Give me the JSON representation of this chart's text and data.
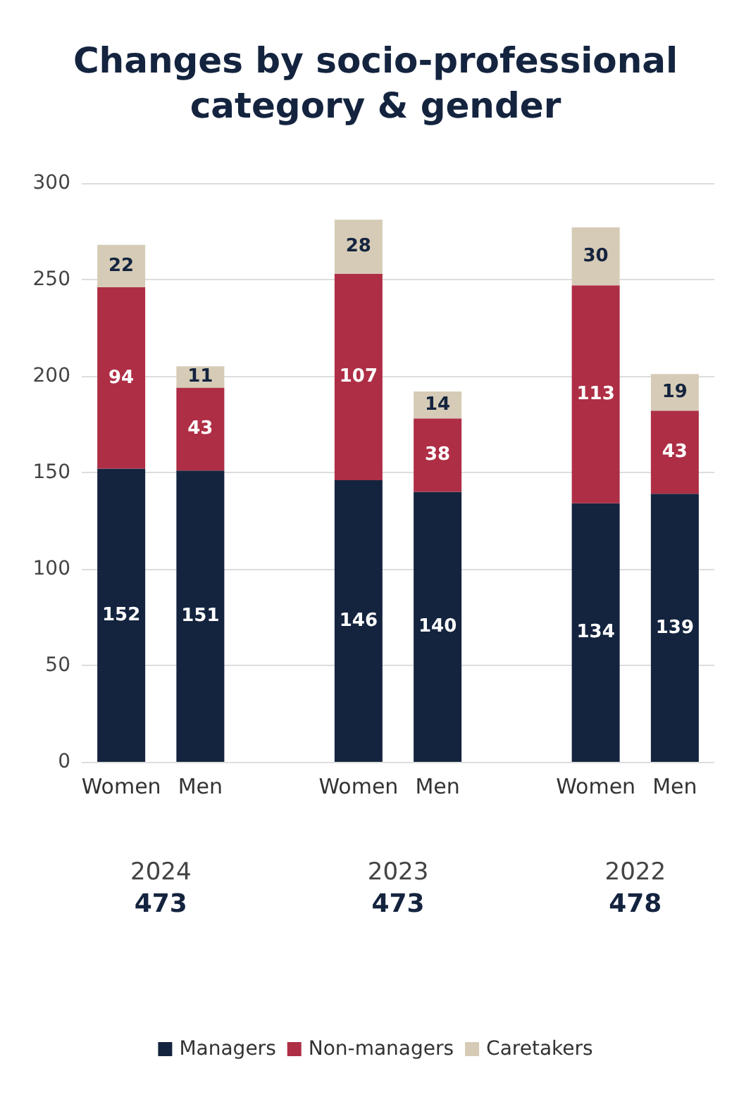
{
  "chart_data": {
    "type": "bar",
    "title": "Changes by socio-professional\ncategory & gender",
    "categories": [
      "Women",
      "Men",
      null,
      "Women",
      "Men",
      null,
      "Women",
      "Men"
    ],
    "series": [
      {
        "name": "Managers",
        "color": "#14243f",
        "values": [
          152,
          151,
          null,
          146,
          140,
          null,
          134,
          139
        ]
      },
      {
        "name": "Non-managers",
        "color": "#ae2e45",
        "values": [
          94,
          43,
          null,
          107,
          38,
          null,
          113,
          43
        ]
      },
      {
        "name": "Caretakers",
        "color": "#d6cbb6",
        "values": [
          22,
          11,
          null,
          28,
          14,
          null,
          30,
          19
        ]
      }
    ],
    "stacked": true,
    "data_labels": true,
    "ylim": [
      0,
      300
    ],
    "yticks": [
      0,
      50,
      100,
      150,
      200,
      250,
      300
    ],
    "grid": "y",
    "legend": "bottom",
    "annotations": [
      "2024",
      "473",
      "2023",
      "473",
      "2022",
      "478"
    ]
  }
}
